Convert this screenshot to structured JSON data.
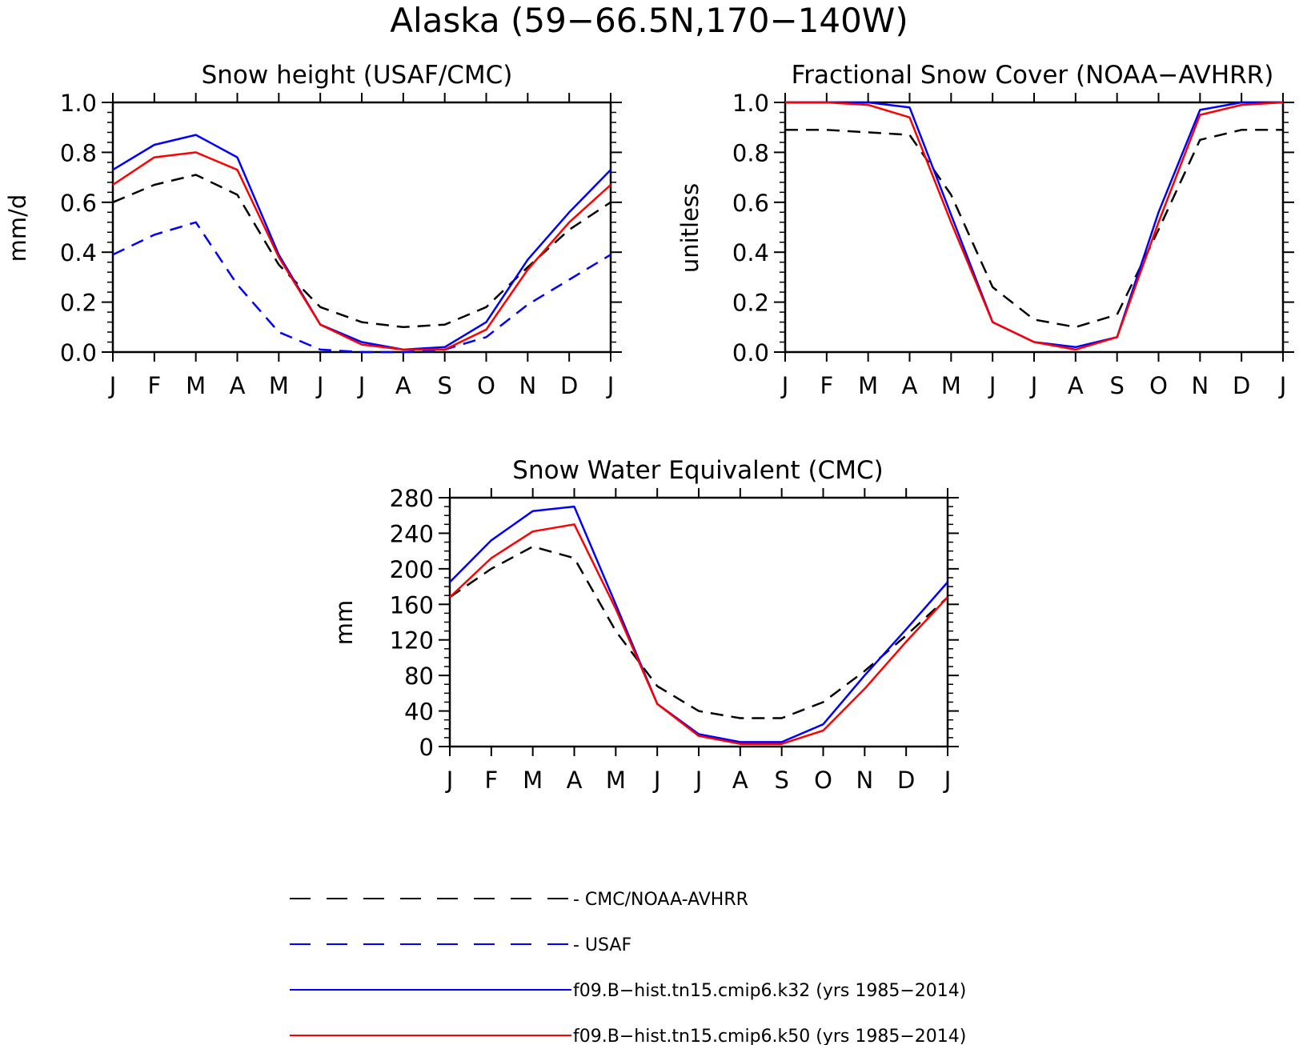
{
  "figure_title": "Alaska (59−66.5N,170−140W)",
  "legend": [
    {
      "label": "- CMC/NOAA-AVHRR",
      "color": "#000000",
      "dashed": true
    },
    {
      "label": "- USAF",
      "color": "#0000ff",
      "dashed": true
    },
    {
      "label": "f09.B−hist.tn15.cmip6.k32 (yrs 1985−2014)",
      "color": "#0000ff",
      "dashed": false
    },
    {
      "label": "f09.B−hist.tn15.cmip6.k50 (yrs 1985−2014)",
      "color": "#ff0000",
      "dashed": false
    }
  ],
  "chart_data": [
    {
      "type": "line",
      "title": "Snow height (USAF/CMC)",
      "xlabel": "",
      "ylabel": "mm/d",
      "categories": [
        "J",
        "F",
        "M",
        "A",
        "M",
        "J",
        "J",
        "A",
        "S",
        "O",
        "N",
        "D",
        "J"
      ],
      "ylim": [
        0,
        1.0
      ],
      "yticks": [
        "0.0",
        "0.2",
        "0.4",
        "0.6",
        "0.8",
        "1.0"
      ],
      "series": [
        {
          "color": "#000000",
          "dashed": true,
          "values": [
            0.6,
            0.67,
            0.71,
            0.63,
            0.35,
            0.18,
            0.12,
            0.1,
            0.11,
            0.18,
            0.34,
            0.49,
            0.6
          ]
        },
        {
          "color": "#0000ff",
          "dashed": true,
          "values": [
            0.39,
            0.47,
            0.52,
            0.27,
            0.08,
            0.01,
            0.0,
            0.0,
            0.01,
            0.06,
            0.19,
            0.29,
            0.39
          ]
        },
        {
          "color": "#0000ff",
          "dashed": false,
          "values": [
            0.73,
            0.83,
            0.87,
            0.78,
            0.39,
            0.11,
            0.04,
            0.01,
            0.02,
            0.12,
            0.37,
            0.56,
            0.73
          ]
        },
        {
          "color": "#ff0000",
          "dashed": false,
          "values": [
            0.67,
            0.78,
            0.8,
            0.73,
            0.38,
            0.11,
            0.03,
            0.01,
            0.01,
            0.09,
            0.33,
            0.52,
            0.67
          ]
        }
      ]
    },
    {
      "type": "line",
      "title": "Fractional Snow Cover (NOAA−AVHRR)",
      "xlabel": "",
      "ylabel": "unitless",
      "categories": [
        "J",
        "F",
        "M",
        "A",
        "M",
        "J",
        "J",
        "A",
        "S",
        "O",
        "N",
        "D",
        "J"
      ],
      "ylim": [
        0,
        1.0
      ],
      "yticks": [
        "0.0",
        "0.2",
        "0.4",
        "0.6",
        "0.8",
        "1.0"
      ],
      "series": [
        {
          "color": "#000000",
          "dashed": true,
          "values": [
            0.89,
            0.89,
            0.88,
            0.87,
            0.63,
            0.26,
            0.13,
            0.1,
            0.15,
            0.49,
            0.85,
            0.89,
            0.89
          ]
        },
        {
          "color": "#0000ff",
          "dashed": false,
          "values": [
            1.0,
            1.0,
            1.0,
            0.98,
            0.55,
            0.12,
            0.04,
            0.02,
            0.06,
            0.56,
            0.97,
            1.0,
            1.0
          ]
        },
        {
          "color": "#ff0000",
          "dashed": false,
          "values": [
            1.0,
            1.0,
            0.99,
            0.94,
            0.52,
            0.12,
            0.04,
            0.01,
            0.06,
            0.52,
            0.95,
            0.99,
            1.0
          ]
        }
      ]
    },
    {
      "type": "line",
      "title": "Snow Water Equivalent (CMC)",
      "xlabel": "",
      "ylabel": "mm",
      "categories": [
        "J",
        "F",
        "M",
        "A",
        "M",
        "J",
        "J",
        "A",
        "S",
        "O",
        "N",
        "D",
        "J"
      ],
      "ylim": [
        0,
        280
      ],
      "yticks": [
        "0",
        "40",
        "80",
        "120",
        "160",
        "200",
        "240",
        "280"
      ],
      "series": [
        {
          "color": "#000000",
          "dashed": true,
          "values": [
            168,
            200,
            225,
            212,
            130,
            68,
            40,
            32,
            32,
            50,
            85,
            125,
            168
          ]
        },
        {
          "color": "#0000ff",
          "dashed": false,
          "values": [
            185,
            232,
            265,
            270,
            160,
            48,
            14,
            5,
            5,
            25,
            80,
            132,
            185
          ]
        },
        {
          "color": "#ff0000",
          "dashed": false,
          "values": [
            168,
            212,
            242,
            250,
            155,
            48,
            12,
            3,
            3,
            18,
            65,
            118,
            168
          ]
        }
      ]
    }
  ]
}
